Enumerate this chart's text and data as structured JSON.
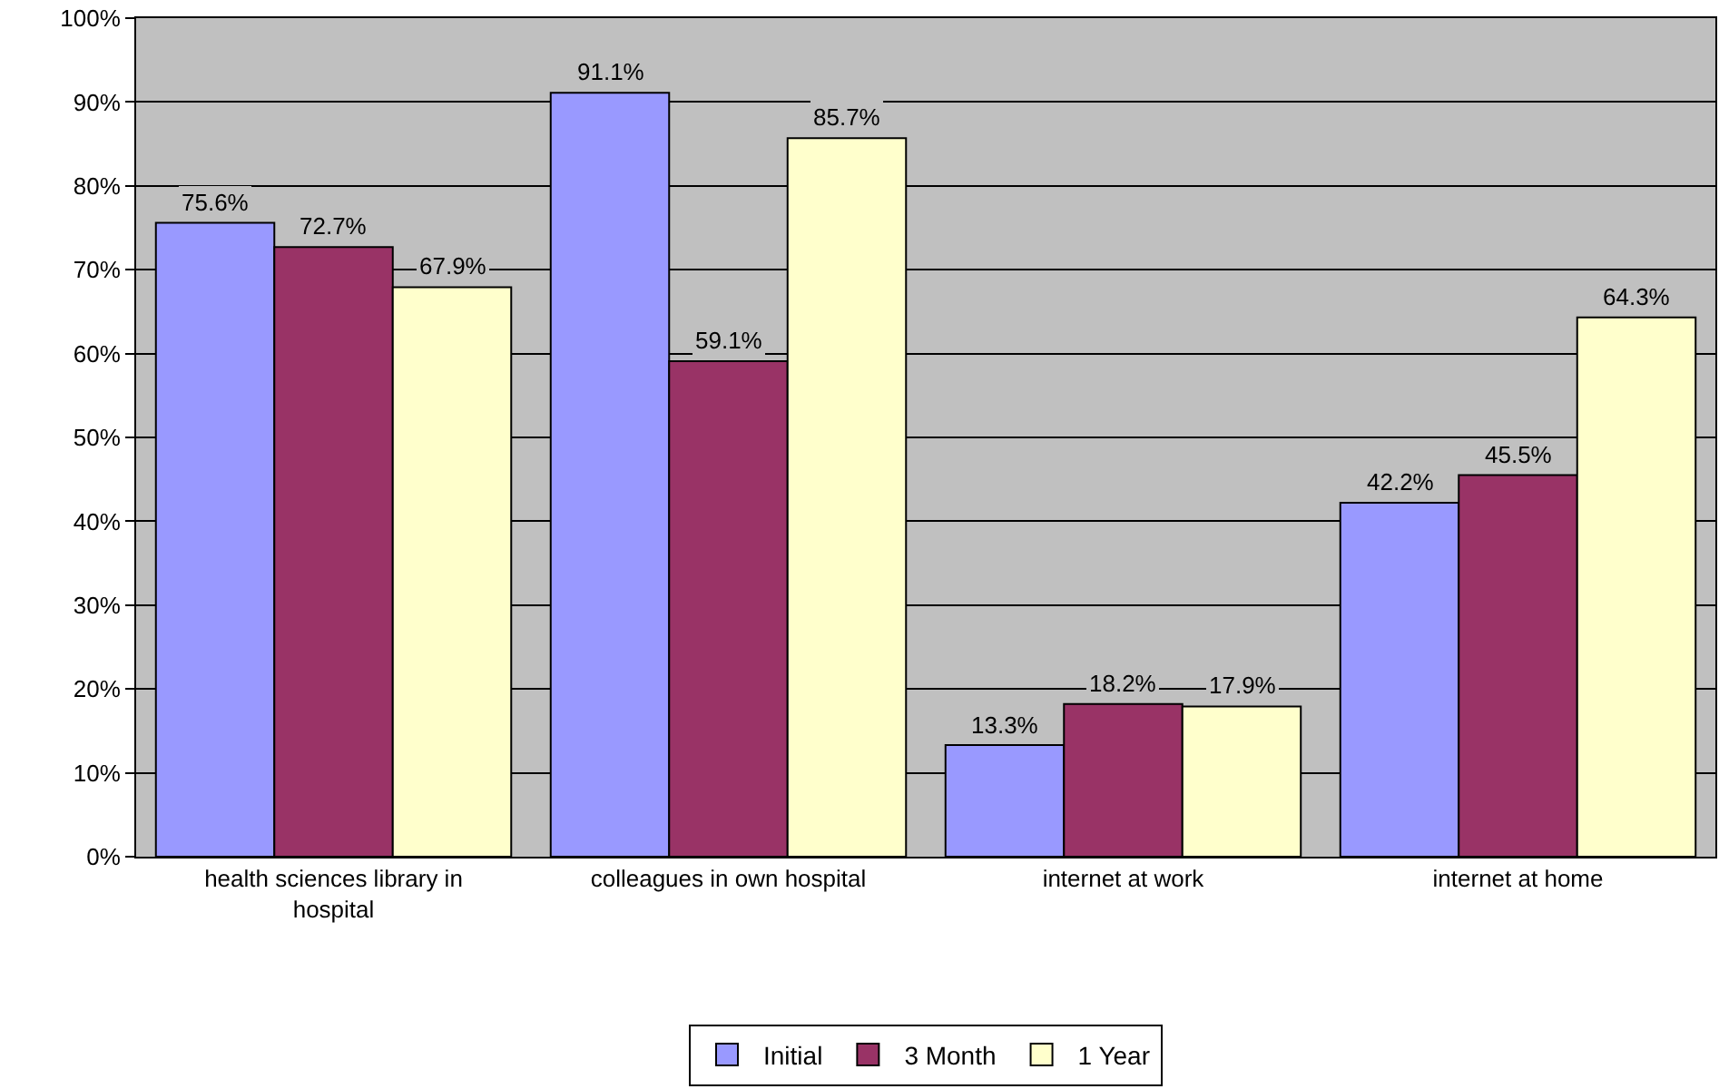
{
  "chart_data": {
    "type": "bar",
    "categories": [
      "health sciences library in hospital",
      "colleagues in own hospital",
      "internet at work",
      "internet at home"
    ],
    "series": [
      {
        "name": "Initial",
        "color": "#9999ff",
        "values": [
          75.6,
          91.1,
          13.3,
          42.2
        ]
      },
      {
        "name": "3 Month",
        "color": "#993366",
        "values": [
          72.7,
          59.1,
          18.2,
          45.5
        ]
      },
      {
        "name": "1 Year",
        "color": "#ffffcc",
        "values": [
          67.9,
          85.7,
          17.9,
          64.3
        ]
      }
    ],
    "ylim": [
      0,
      100
    ],
    "yticks": [
      {
        "value": 0,
        "label": "0%"
      },
      {
        "value": 10,
        "label": "10%"
      },
      {
        "value": 20,
        "label": "20%"
      },
      {
        "value": 30,
        "label": "30%"
      },
      {
        "value": 40,
        "label": "40%"
      },
      {
        "value": 50,
        "label": "50%"
      },
      {
        "value": 60,
        "label": "60%"
      },
      {
        "value": 70,
        "label": "70%"
      },
      {
        "value": 80,
        "label": "80%"
      },
      {
        "value": 90,
        "label": "90%"
      },
      {
        "value": 100,
        "label": "100%"
      }
    ],
    "value_labels": [
      [
        "75.6%",
        "91.1%",
        "13.3%",
        "42.2%"
      ],
      [
        "72.7%",
        "59.1%",
        "18.2%",
        "45.5%"
      ],
      [
        "67.9%",
        "85.7%",
        "17.9%",
        "64.3%"
      ]
    ],
    "grid": "y",
    "legend": "bottom"
  }
}
